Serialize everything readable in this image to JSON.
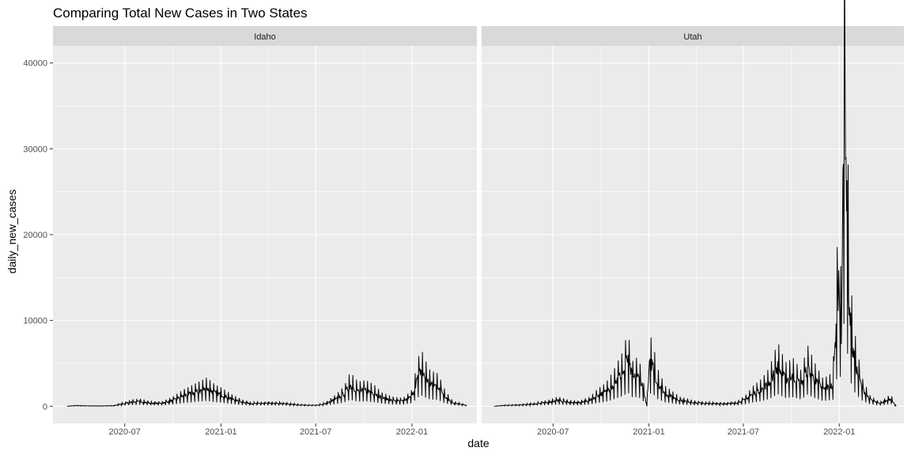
{
  "chart_data": {
    "type": "line",
    "title": "Comparing Total New Cases in Two States",
    "xlabel": "date",
    "ylabel": "daily_new_cases",
    "x_ticks": [
      "2020-07",
      "2021-01",
      "2021-07",
      "2022-01"
    ],
    "y_ticks": [
      0,
      10000,
      20000,
      30000,
      40000
    ],
    "xlim": [
      "2020-02-15",
      "2022-05-05"
    ],
    "ylim": [
      -2000,
      42000
    ],
    "grid": true,
    "series": [
      {
        "name": "Idaho",
        "date_range": [
          "2020-03-13",
          "2022-04-15"
        ],
        "line_color": "#000000",
        "points": [
          [
            "2020-03-13",
            0
          ],
          [
            "2020-04-01",
            80
          ],
          [
            "2020-04-20",
            40
          ],
          [
            "2020-05-15",
            30
          ],
          [
            "2020-06-10",
            60
          ],
          [
            "2020-06-25",
            250
          ],
          [
            "2020-07-15",
            500
          ],
          [
            "2020-08-01",
            550
          ],
          [
            "2020-08-20",
            350
          ],
          [
            "2020-09-10",
            350
          ],
          [
            "2020-10-01",
            700
          ],
          [
            "2020-10-20",
            1200
          ],
          [
            "2020-11-10",
            1600
          ],
          [
            "2020-11-25",
            1900
          ],
          [
            "2020-12-05",
            2100
          ],
          [
            "2020-12-20",
            1600
          ],
          [
            "2021-01-05",
            1300
          ],
          [
            "2021-01-20",
            900
          ],
          [
            "2021-02-10",
            500
          ],
          [
            "2021-03-01",
            300
          ],
          [
            "2021-04-01",
            350
          ],
          [
            "2021-05-01",
            300
          ],
          [
            "2021-06-01",
            150
          ],
          [
            "2021-07-01",
            100
          ],
          [
            "2021-07-20",
            300
          ],
          [
            "2021-08-10",
            900
          ],
          [
            "2021-08-25",
            1500
          ],
          [
            "2021-09-05",
            2500
          ],
          [
            "2021-09-20",
            1800
          ],
          [
            "2021-10-05",
            1900
          ],
          [
            "2021-10-20",
            1600
          ],
          [
            "2021-11-05",
            1000
          ],
          [
            "2021-11-25",
            700
          ],
          [
            "2021-12-15",
            600
          ],
          [
            "2022-01-01",
            1200
          ],
          [
            "2022-01-10",
            3000
          ],
          [
            "2022-01-18",
            4300
          ],
          [
            "2022-01-25",
            3500
          ],
          [
            "2022-02-05",
            2600
          ],
          [
            "2022-02-20",
            2400
          ],
          [
            "2022-03-05",
            1200
          ],
          [
            "2022-03-20",
            400
          ],
          [
            "2022-04-15",
            100
          ]
        ]
      },
      {
        "name": "Utah",
        "date_range": [
          "2020-03-10",
          "2022-04-20"
        ],
        "line_color": "#000000",
        "points": [
          [
            "2020-03-10",
            0
          ],
          [
            "2020-04-01",
            100
          ],
          [
            "2020-05-01",
            150
          ],
          [
            "2020-06-01",
            300
          ],
          [
            "2020-06-25",
            500
          ],
          [
            "2020-07-10",
            700
          ],
          [
            "2020-08-01",
            450
          ],
          [
            "2020-08-20",
            400
          ],
          [
            "2020-09-10",
            700
          ],
          [
            "2020-09-25",
            1300
          ],
          [
            "2020-10-10",
            1700
          ],
          [
            "2020-10-25",
            2600
          ],
          [
            "2020-11-05",
            3500
          ],
          [
            "2020-11-15",
            4200
          ],
          [
            "2020-11-20",
            5700
          ],
          [
            "2020-12-01",
            3300
          ],
          [
            "2020-12-10",
            3600
          ],
          [
            "2020-12-18",
            2800
          ],
          [
            "2020-12-28",
            0
          ],
          [
            "2021-01-02",
            4800
          ],
          [
            "2021-01-08",
            5200
          ],
          [
            "2021-01-15",
            3000
          ],
          [
            "2021-02-01",
            1500
          ],
          [
            "2021-03-01",
            700
          ],
          [
            "2021-04-01",
            400
          ],
          [
            "2021-05-01",
            300
          ],
          [
            "2021-06-01",
            300
          ],
          [
            "2021-06-20",
            400
          ],
          [
            "2021-07-05",
            800
          ],
          [
            "2021-07-20",
            1500
          ],
          [
            "2021-08-05",
            2000
          ],
          [
            "2021-08-20",
            2800
          ],
          [
            "2021-09-05",
            4700
          ],
          [
            "2021-09-20",
            3200
          ],
          [
            "2021-10-05",
            3500
          ],
          [
            "2021-10-20",
            2600
          ],
          [
            "2021-11-01",
            4500
          ],
          [
            "2021-11-15",
            3200
          ],
          [
            "2021-12-01",
            2000
          ],
          [
            "2021-12-20",
            2500
          ],
          [
            "2021-12-31",
            15000
          ],
          [
            "2022-01-05",
            9000
          ],
          [
            "2022-01-08",
            24000
          ],
          [
            "2022-01-12",
            40000
          ],
          [
            "2022-01-15",
            26000
          ],
          [
            "2022-01-20",
            12000
          ],
          [
            "2022-01-27",
            6500
          ],
          [
            "2022-02-05",
            4000
          ],
          [
            "2022-02-15",
            2000
          ],
          [
            "2022-03-01",
            800
          ],
          [
            "2022-03-20",
            300
          ],
          [
            "2022-04-10",
            900
          ],
          [
            "2022-04-20",
            0
          ]
        ]
      }
    ]
  }
}
